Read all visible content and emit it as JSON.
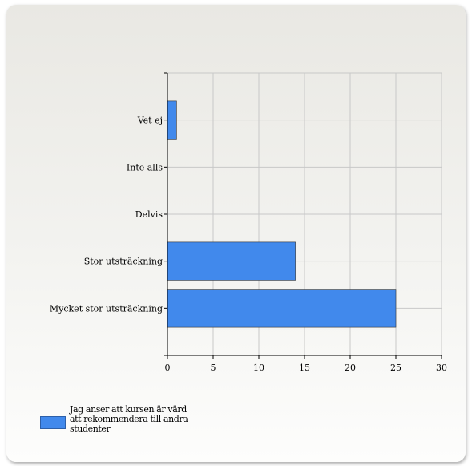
{
  "chart_data": {
    "type": "bar",
    "orientation": "horizontal",
    "categories": [
      "Vet ej",
      "Inte alls",
      "Delvis",
      "Stor utsträckning",
      "Mycket stor utsträckning"
    ],
    "series": [
      {
        "name": "Jag anser att kursen är värd att rekommendera till andra studenter",
        "values": [
          1,
          0,
          0,
          14,
          25
        ],
        "color": "#4189ec"
      }
    ],
    "xlim": [
      0,
      30
    ],
    "xticks": [
      0,
      5,
      10,
      15,
      20,
      25,
      30
    ],
    "grid": true,
    "legend_position": "bottom-left"
  },
  "legend": {
    "lines": [
      "Jag anser att kursen är värd",
      "att rekommendera till andra",
      "studenter"
    ]
  }
}
